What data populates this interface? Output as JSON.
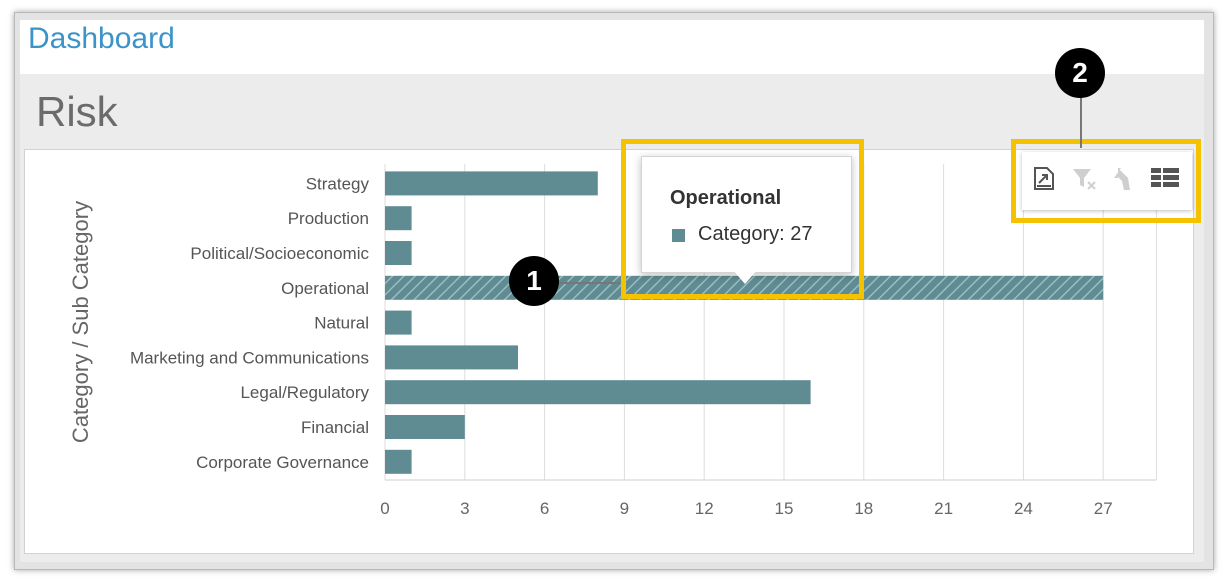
{
  "header": {
    "title": "Dashboard"
  },
  "panel": {
    "title": "Risk"
  },
  "tooltip": {
    "title": "Operational",
    "value_text": "Category: 27"
  },
  "callouts": {
    "one": "1",
    "two": "2"
  },
  "toolbar": {
    "icons": [
      "export-icon",
      "clear-filter-icon",
      "drill-up-icon",
      "grid-layout-icon"
    ]
  },
  "colors": {
    "bar": "#5e8c92",
    "highlight": "#f5c200",
    "title_blue": "#3b93c9"
  },
  "chart_data": {
    "type": "bar",
    "orientation": "horizontal",
    "ylabel": "Category / Sub Category",
    "xlabel": "",
    "categories": [
      "Strategy",
      "Production",
      "Political/Socioeconomic",
      "Operational",
      "Natural",
      "Marketing and Communications",
      "Legal/Regulatory",
      "Financial",
      "Corporate Governance"
    ],
    "values": [
      8,
      1,
      1,
      27,
      1,
      5,
      16,
      3,
      1
    ],
    "xlim": [
      0,
      29
    ],
    "xticks": [
      0,
      3,
      6,
      9,
      12,
      15,
      18,
      21,
      24,
      27
    ],
    "grid": true,
    "hovered_category": "Operational"
  }
}
